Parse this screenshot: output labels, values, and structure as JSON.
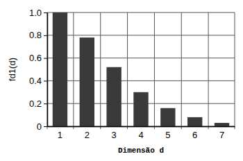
{
  "chart_data": {
    "type": "bar",
    "x_label": "Dimensão d",
    "y_label": "fd1(d)",
    "categories": [
      1,
      2,
      3,
      4,
      5,
      6,
      7
    ],
    "values": [
      1.0,
      0.78,
      0.52,
      0.3,
      0.16,
      0.08,
      0.03
    ],
    "color": "#3a3a3a",
    "ylim": [
      0,
      1
    ],
    "yticks": [
      0,
      0.2,
      0.4,
      0.6,
      0.8,
      {
        "value": 1,
        "label": "1.0"
      }
    ],
    "grid": true
  }
}
